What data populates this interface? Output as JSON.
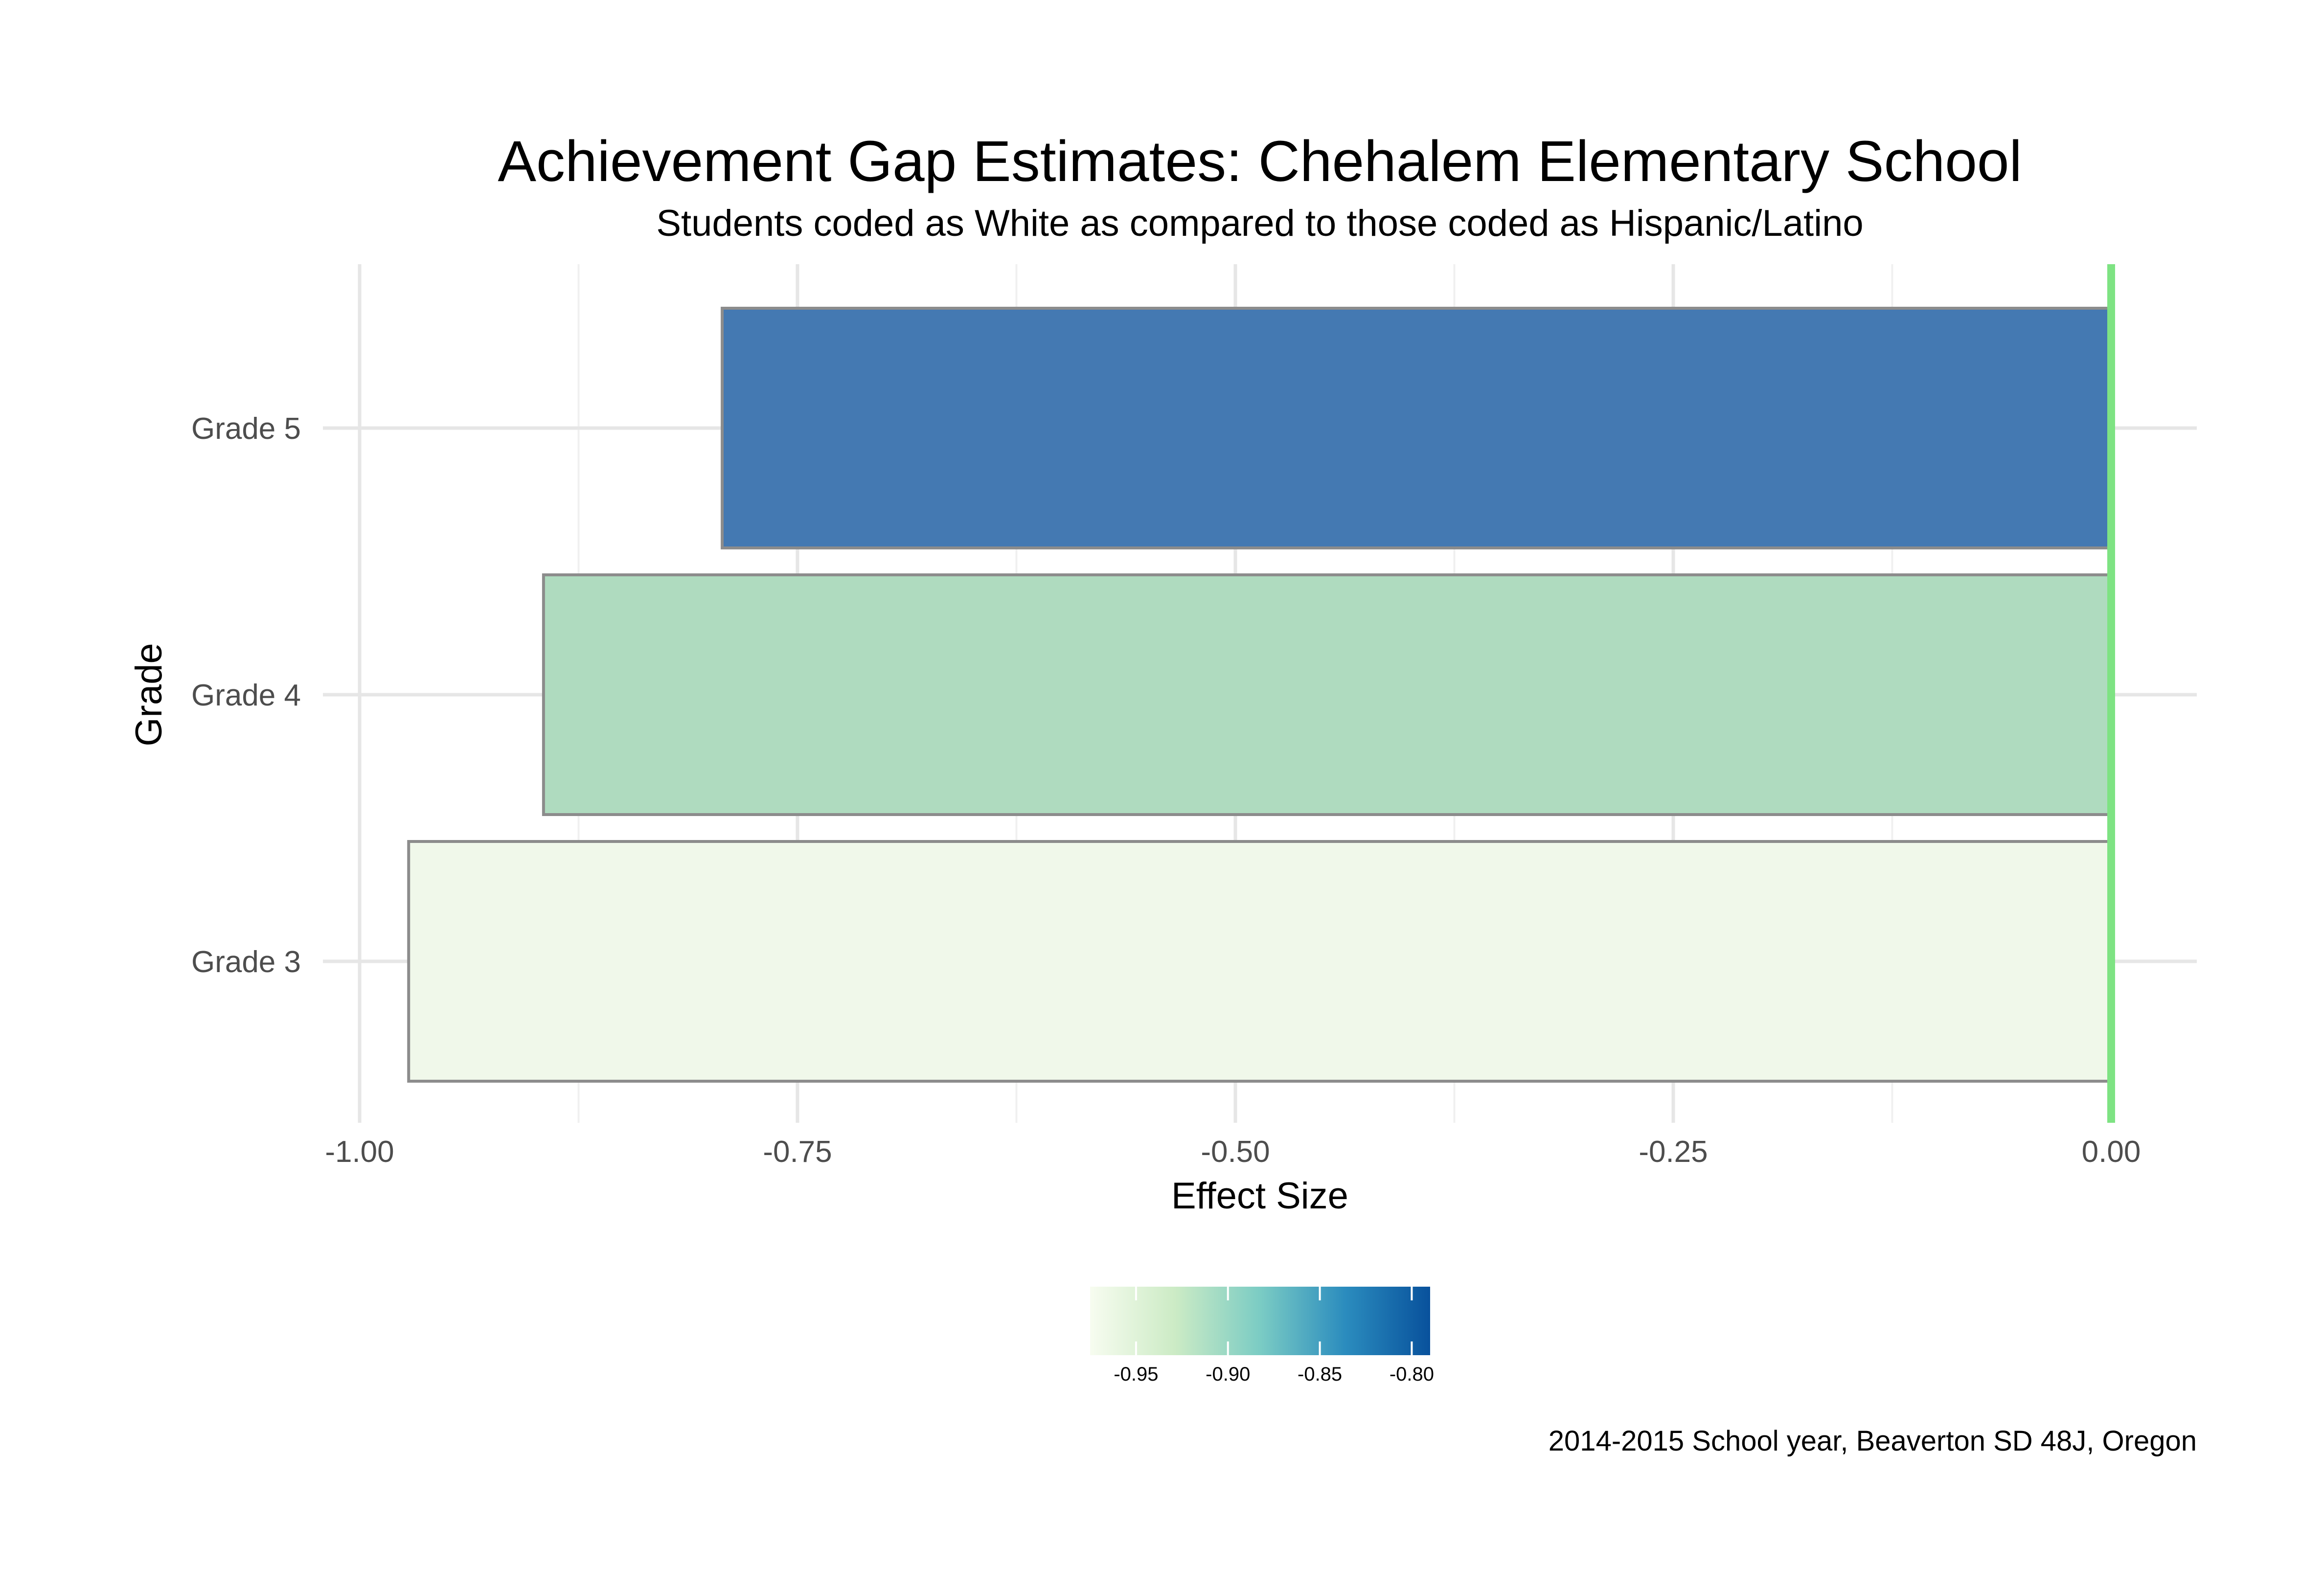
{
  "chart_data": {
    "type": "bar",
    "orientation": "horizontal",
    "title": "Achievement Gap Estimates: Chehalem Elementary School",
    "subtitle": "Students coded as White as compared to those coded as Hispanic/Latino",
    "xlabel": "Effect Size",
    "ylabel": "Grade",
    "caption": "2014-2015 School year, Beaverton SD 48J, Oregon",
    "categories": [
      "Grade 3",
      "Grade 4",
      "Grade 5"
    ],
    "values": [
      -0.972,
      -0.895,
      -0.793
    ],
    "bar_colors": [
      "#eff8e9",
      "#acdabd",
      "#3e75b0"
    ],
    "xlim": [
      -1.0,
      0.0
    ],
    "x_ticks": [
      -1.0,
      -0.75,
      -0.5,
      -0.25,
      0.0
    ],
    "x_tick_labels": [
      "-1.00",
      "-0.75",
      "-0.50",
      "-0.25",
      "0.00"
    ],
    "reference_line": {
      "x": 0.0,
      "color": "#7ee383"
    },
    "grid": true,
    "legend": {
      "placement": "bottom",
      "type": "colorbar",
      "range": [
        -0.975,
        -0.79
      ],
      "breaks": [
        -0.95,
        -0.9,
        -0.85,
        -0.8
      ],
      "break_labels": [
        "-0.95",
        "-0.90",
        "-0.85",
        "-0.80"
      ],
      "colors": [
        "#f7fcf0",
        "#ccebc5",
        "#7bccc4",
        "#2b8cbe",
        "#08519c"
      ]
    }
  }
}
